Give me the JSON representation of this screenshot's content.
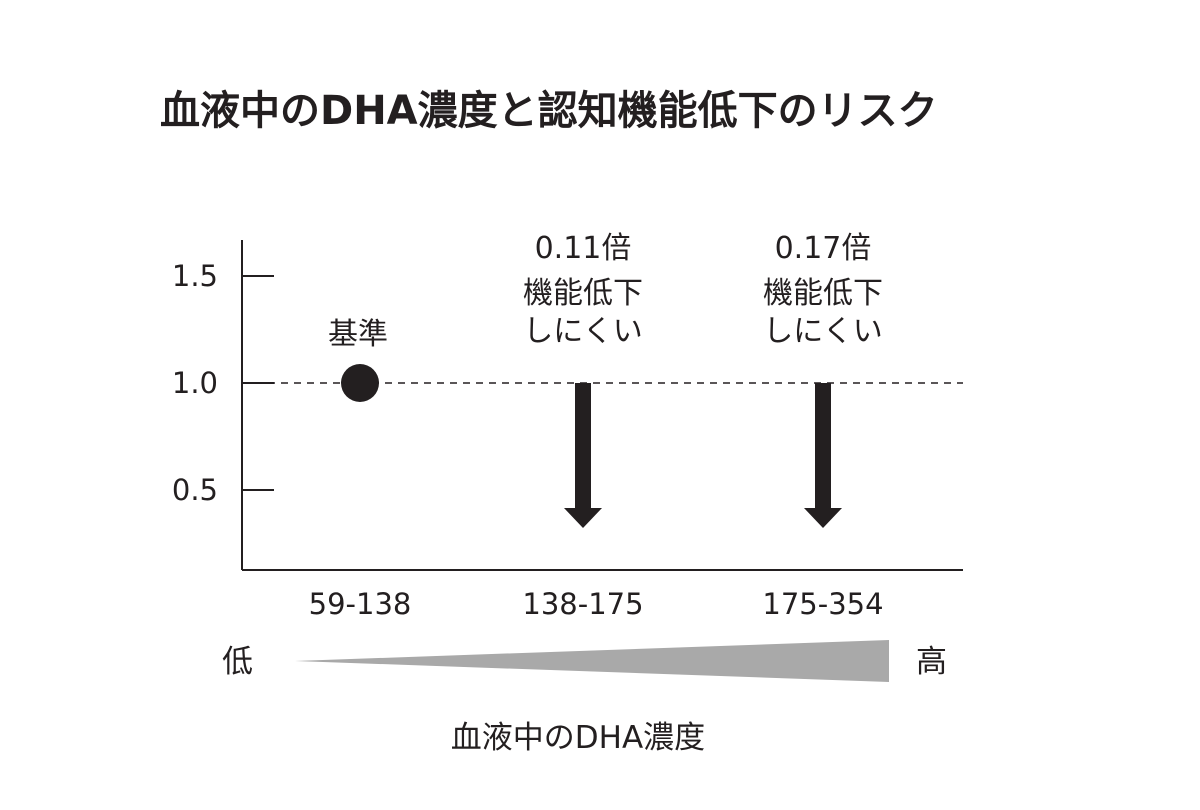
{
  "chart_data": {
    "type": "scatter",
    "title": "血液中のDHA濃度と認知機能低下のリスク",
    "xlabel": "血液中のDHA濃度",
    "ylabel": "",
    "ylim": [
      0.25,
      1.65
    ],
    "yticks": [
      0.5,
      1.0,
      1.5
    ],
    "ytick_labels": [
      "0.5",
      "1.0",
      "1.5"
    ],
    "reference_line": 1.0,
    "grid": false,
    "categories": [
      "59-138",
      "138-175",
      "175-354"
    ],
    "points": [
      {
        "category": "59-138",
        "value": 1.0,
        "marker": "dot",
        "label_lines": [
          "基準"
        ]
      },
      {
        "category": "138-175",
        "value": 0.11,
        "marker": "down-arrow",
        "label_lines": [
          "0.11倍",
          "機能低下",
          "しにくい"
        ]
      },
      {
        "category": "175-354",
        "value": 0.17,
        "marker": "down-arrow",
        "label_lines": [
          "0.17倍",
          "機能低下",
          "しにくい"
        ]
      }
    ],
    "gradient_scale": {
      "low_label": "低",
      "high_label": "高",
      "color": "#a9a9a9"
    },
    "colors": {
      "ink": "#231f20",
      "gradient": "#a9a9a9"
    }
  }
}
